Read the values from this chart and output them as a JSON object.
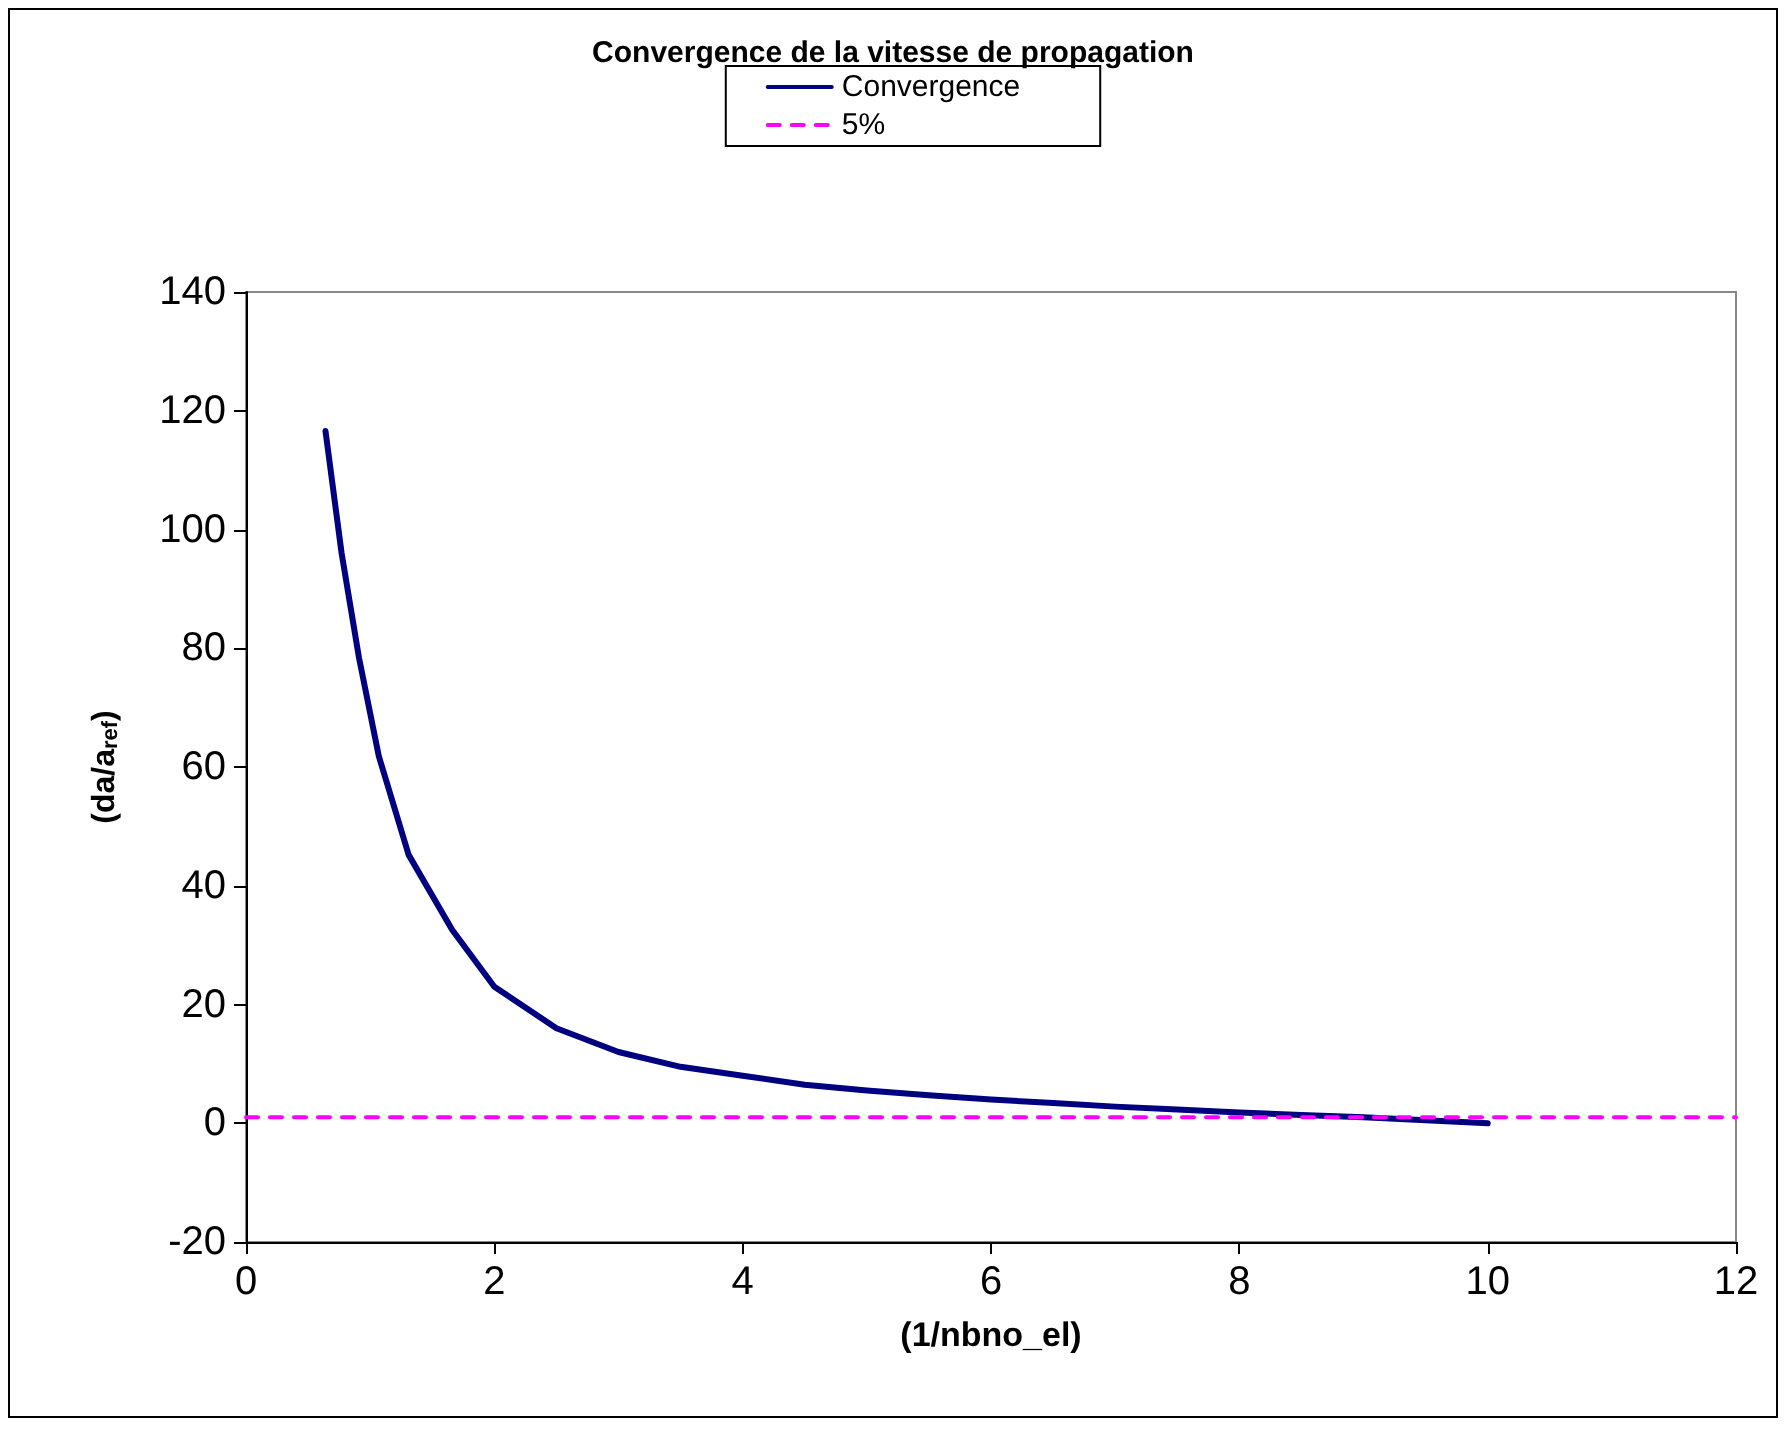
{
  "chart_data": {
    "type": "line",
    "title": "Convergence de la vitesse de propagation",
    "xlabel": "(1/nbno_el)",
    "ylabel": "(da/a$_{ref}$)",
    "xlim": [
      0,
      12
    ],
    "xticks": [
      0,
      2,
      4,
      6,
      8,
      10,
      12
    ],
    "ylim": [
      -20,
      140
    ],
    "yticks": [
      -20,
      0,
      20,
      40,
      60,
      80,
      100,
      120,
      140
    ],
    "grid": false,
    "legend": "top",
    "marker": "none",
    "line_style": "solid",
    "series": [
      {
        "name": "Convergence",
        "color": "#000080",
        "x": [
          0.64,
          0.77,
          0.91,
          1.07,
          1.31,
          1.66,
          2,
          2.5,
          3,
          3.5,
          4,
          4.5,
          5,
          5.5,
          6,
          6.5,
          7,
          7.5,
          8,
          8.5,
          9,
          9.5,
          10
        ],
        "values": [
          116.6,
          96,
          78.4,
          61.8,
          45.2,
          32.6,
          23,
          16,
          12,
          9.5,
          8,
          6.5,
          5.5,
          4.7,
          4,
          3.4,
          2.8,
          2.3,
          1.8,
          1.4,
          1,
          0.5,
          0
        ]
      },
      {
        "name": "5%",
        "color": "#ff00ff",
        "line_style": "dashed",
        "x": [
          0,
          12
        ],
        "values": [
          1,
          1
        ]
      }
    ]
  }
}
